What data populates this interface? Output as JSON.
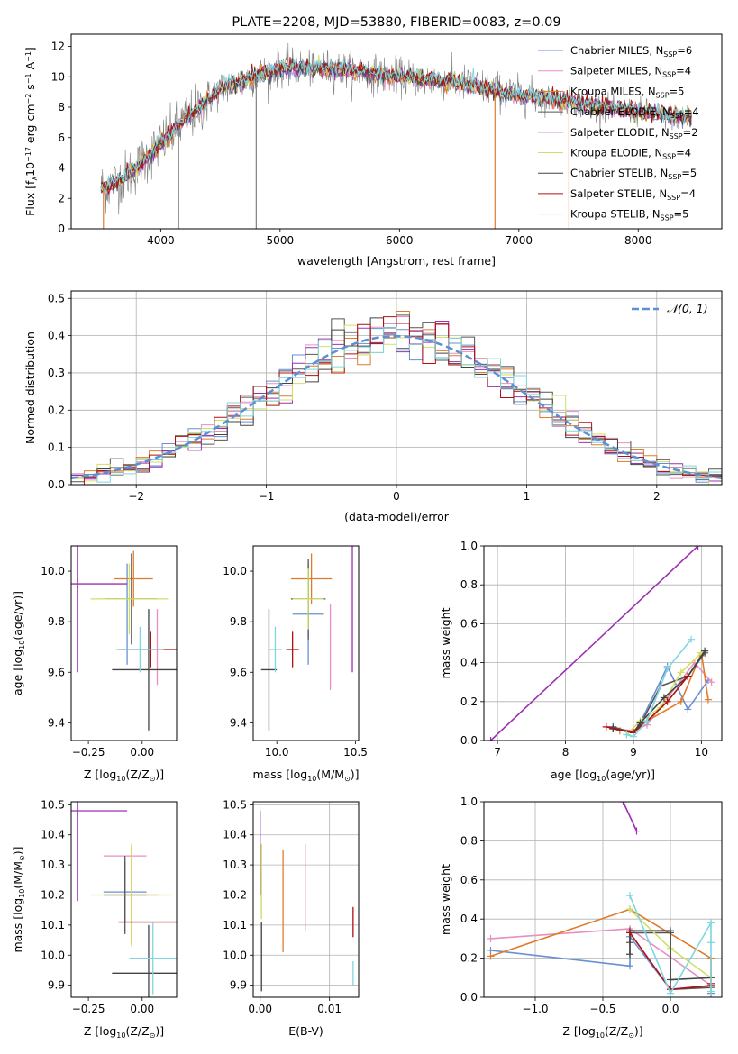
{
  "chart_data": [
    {
      "type": "line",
      "title": "PLATE=2208, MJD=53880, FIBERID=0083, z=0.09",
      "xlabel": "wavelength [Angstrom, rest frame]",
      "ylabel_main": "Flux [f",
      "ylabel_sub": "λ",
      "ylabel_rest": "10",
      "ylabel_exp1": "−17",
      "ylabel_units": " erg cm",
      "ylabel_exp2": "−2",
      "ylabel_s": " s",
      "ylabel_exp3": "−1",
      "ylabel_A": " A",
      "ylabel_exp4": "−1",
      "ylabel_close": "]",
      "xlim": [
        3250,
        8700
      ],
      "ylim": [
        0,
        12.8
      ],
      "xticks": [
        4000,
        5000,
        6000,
        7000,
        8000
      ],
      "yticks": [
        0,
        2,
        4,
        6,
        8,
        10,
        12
      ],
      "grid": false,
      "legend_position": "top-right",
      "data_color": "#808080",
      "series": [
        {
          "name": "Chabrier MILES, N",
          "sub": "SSP",
          "suffix": "=6",
          "color": "#6a8fd4"
        },
        {
          "name": "Salpeter MILES, N",
          "sub": "SSP",
          "suffix": "=4",
          "color": "#e88fc0"
        },
        {
          "name": "Kroupa MILES, N",
          "sub": "SSP",
          "suffix": "=5",
          "color": "#e07b2c"
        },
        {
          "name": "Chabrier ELODIE, N",
          "sub": "SSP",
          "suffix": "=4",
          "color": "#555555"
        },
        {
          "name": "Salpeter ELODIE, N",
          "sub": "SSP",
          "suffix": "=2",
          "color": "#9b30b0"
        },
        {
          "name": "Kroupa ELODIE, N",
          "sub": "SSP",
          "suffix": "=4",
          "color": "#cfe066"
        },
        {
          "name": "Chabrier STELIB, N",
          "sub": "SSP",
          "suffix": "=5",
          "color": "#444444"
        },
        {
          "name": "Salpeter STELIB, N",
          "sub": "SSP",
          "suffix": "=4",
          "color": "#b01010"
        },
        {
          "name": "Kroupa STELIB, N",
          "sub": "SSP",
          "suffix": "=5",
          "color": "#7fd6df"
        }
      ],
      "continuum": {
        "x": [
          3500,
          3600,
          3800,
          4000,
          4200,
          4500,
          5000,
          5500,
          6000,
          6500,
          7000,
          7400,
          7800,
          8200,
          8450
        ],
        "y": [
          2.7,
          2.9,
          4.0,
          5.6,
          7.1,
          9.2,
          10.6,
          10.5,
          10.0,
          9.6,
          8.8,
          8.4,
          7.9,
          7.5,
          7.3
        ]
      }
    },
    {
      "type": "histogram",
      "xlabel": "(data-model)/error",
      "ylabel": "Normed distribution",
      "xlim": [
        -2.5,
        2.5
      ],
      "ylim": [
        0,
        0.52
      ],
      "xticks": [
        -2,
        -1,
        0,
        1,
        2
      ],
      "xtick_labels": [
        "−2",
        "−1",
        "0",
        "1",
        "2"
      ],
      "yticks": [
        0.0,
        0.1,
        0.2,
        0.3,
        0.4,
        0.5
      ],
      "ytick_labels": [
        "0.0",
        "0.1",
        "0.2",
        "0.3",
        "0.4",
        "0.5"
      ],
      "grid": true,
      "bin_width": 0.1,
      "legend_label": "𝒩(0, 1)",
      "legend_position": "top-right",
      "normal_color": "#5b8fd6"
    },
    {
      "type": "scatter",
      "xlabel": "Z [log",
      "xlabel_sub": "10",
      "xlabel_rest": "(Z/Z",
      "xlabel_sub2": "⊙",
      "xlabel_close": ")]",
      "ylabel": "age  [log",
      "ylabel_sub": "10",
      "ylabel_rest": "(age/yr)]",
      "xlim": [
        -0.33,
        0.16
      ],
      "ylim": [
        9.33,
        10.1
      ],
      "xticks": [
        -0.25,
        0.0
      ],
      "xtick_labels": [
        "−0.25",
        "0.00"
      ],
      "yticks": [
        9.4,
        9.6,
        9.8,
        10.0
      ],
      "ytick_labels": [
        "9.4",
        "9.6",
        "9.8",
        "10.0"
      ],
      "points": [
        {
          "x": -0.07,
          "xerr": 0.0,
          "y": 9.83,
          "yerr": 0.2,
          "color": "#6a8fd4"
        },
        {
          "x": 0.07,
          "xerr": 0.0,
          "y": 9.7,
          "yerr": 0.15,
          "color": "#e88fc0"
        },
        {
          "x": -0.04,
          "xerr": 0.09,
          "y": 9.97,
          "yerr": 0.11,
          "color": "#e07b2c"
        },
        {
          "x": -0.05,
          "xerr": 0.12,
          "y": 9.89,
          "yerr": 0.18,
          "color": "#555555"
        },
        {
          "x": -0.3,
          "xerr": 0.23,
          "y": 9.95,
          "yerr": 0.35,
          "color": "#9b30b0"
        },
        {
          "x": -0.06,
          "xerr": 0.18,
          "y": 9.89,
          "yerr": 0.14,
          "color": "#cfe066"
        },
        {
          "x": 0.03,
          "xerr": 0.17,
          "y": 9.61,
          "yerr": 0.24,
          "color": "#444444"
        },
        {
          "x": 0.04,
          "xerr": 0.15,
          "y": 9.69,
          "yerr": 0.07,
          "color": "#b01010"
        },
        {
          "x": -0.01,
          "xerr": 0.11,
          "y": 9.69,
          "yerr": 0.09,
          "color": "#7fd6df"
        }
      ]
    },
    {
      "type": "scatter",
      "xlabel": "mass [log",
      "xlabel_sub": "10",
      "xlabel_rest": "(M/M",
      "xlabel_sub2": "⊙",
      "xlabel_close": ")]",
      "xlim": [
        9.85,
        10.52
      ],
      "ylim": [
        9.33,
        10.1
      ],
      "xticks": [
        10.0,
        10.5
      ],
      "xtick_labels": [
        "10.0",
        "10.5"
      ],
      "yticks": [
        9.4,
        9.6,
        9.8,
        10.0
      ],
      "ytick_labels": [
        "9.4",
        "9.6",
        "9.8",
        "10.0"
      ],
      "points": [
        {
          "x": 10.2,
          "xerr": 0.1,
          "y": 9.83,
          "yerr": 0.2,
          "color": "#6a8fd4"
        },
        {
          "x": 10.34,
          "xerr": 0.0,
          "y": 9.7,
          "yerr": 0.17,
          "color": "#e88fc0"
        },
        {
          "x": 10.22,
          "xerr": 0.13,
          "y": 9.97,
          "yerr": 0.1,
          "color": "#e07b2c"
        },
        {
          "x": 10.2,
          "xerr": 0.11,
          "y": 9.89,
          "yerr": 0.16,
          "color": "#555555"
        },
        {
          "x": 10.48,
          "xerr": 0.0,
          "y": 9.95,
          "yerr": 0.35,
          "color": "#9b30b0"
        },
        {
          "x": 10.2,
          "xerr": 0.1,
          "y": 9.89,
          "yerr": 0.12,
          "color": "#cfe066"
        },
        {
          "x": 9.95,
          "xerr": 0.05,
          "y": 9.61,
          "yerr": 0.24,
          "color": "#444444"
        },
        {
          "x": 10.1,
          "xerr": 0.04,
          "y": 9.69,
          "yerr": 0.07,
          "color": "#b01010"
        },
        {
          "x": 9.99,
          "xerr": 0.04,
          "y": 9.69,
          "yerr": 0.09,
          "color": "#7fd6df"
        }
      ]
    },
    {
      "type": "line",
      "xlabel": "age  [log",
      "xlabel_sub": "10",
      "xlabel_rest": "(age/yr)]",
      "ylabel": "mass weight",
      "xlim": [
        6.8,
        10.3
      ],
      "ylim": [
        0,
        1.0
      ],
      "xticks": [
        7,
        8,
        9,
        10
      ],
      "yticks": [
        0.0,
        0.2,
        0.4,
        0.6,
        0.8,
        1.0
      ],
      "ytick_labels": [
        "0.0",
        "0.2",
        "0.4",
        "0.6",
        "0.8",
        "1.0"
      ],
      "grid": true,
      "series": [
        {
          "color": "#6a8fd4",
          "x": [
            8.7,
            9.0,
            9.1,
            9.5,
            9.8,
            10.1
          ],
          "y": [
            0.06,
            0.04,
            0.09,
            0.38,
            0.16,
            0.31
          ]
        },
        {
          "color": "#e88fc0",
          "x": [
            8.7,
            9.0,
            9.2,
            9.5,
            9.9,
            10.15
          ],
          "y": [
            0.06,
            0.05,
            0.08,
            0.22,
            0.4,
            0.3
          ]
        },
        {
          "color": "#e07b2c",
          "x": [
            8.8,
            9.0,
            9.2,
            9.7,
            10.0,
            10.1
          ],
          "y": [
            0.05,
            0.05,
            0.1,
            0.2,
            0.45,
            0.21
          ]
        },
        {
          "color": "#555555",
          "x": [
            8.7,
            9.0,
            9.1,
            9.4,
            9.8,
            10.05
          ],
          "y": [
            0.07,
            0.04,
            0.08,
            0.28,
            0.33,
            0.45
          ]
        },
        {
          "color": "#9b30b0",
          "x": [
            6.9,
            9.95
          ],
          "y": [
            0.0,
            1.0
          ]
        },
        {
          "color": "#cfe066",
          "x": [
            8.9,
            9.1,
            9.4,
            9.7,
            10.0
          ],
          "y": [
            0.03,
            0.1,
            0.17,
            0.35,
            0.45
          ]
        },
        {
          "color": "#444444",
          "x": [
            8.7,
            9.0,
            9.1,
            9.45,
            9.8,
            10.05
          ],
          "y": [
            0.06,
            0.04,
            0.09,
            0.22,
            0.33,
            0.46
          ]
        },
        {
          "color": "#b01010",
          "x": [
            8.6,
            9.0,
            9.2,
            9.5,
            9.8
          ],
          "y": [
            0.07,
            0.04,
            0.1,
            0.2,
            0.33
          ]
        },
        {
          "color": "#7fd6df",
          "x": [
            8.9,
            9.0,
            9.2,
            9.5,
            9.85
          ],
          "y": [
            0.03,
            0.02,
            0.1,
            0.37,
            0.52
          ]
        }
      ]
    },
    {
      "type": "scatter",
      "xlabel": "Z [log",
      "xlabel_sub": "10",
      "xlabel_rest": "(Z/Z",
      "xlabel_sub2": "⊙",
      "xlabel_close": ")]",
      "ylabel": "mass [log",
      "ylabel_sub": "10",
      "ylabel_rest": "(M/M",
      "ylabel_sub2": "⊙",
      "ylabel_close": ")]",
      "xlim": [
        -0.33,
        0.16
      ],
      "ylim": [
        9.86,
        10.51
      ],
      "xticks": [
        -0.25,
        0.0
      ],
      "xtick_labels": [
        "−0.25",
        "0.00"
      ],
      "yticks": [
        9.9,
        10.0,
        10.1,
        10.2,
        10.3,
        10.4,
        10.5
      ],
      "ytick_labels": [
        "9.9",
        "10.0",
        "10.1",
        "10.2",
        "10.3",
        "10.4",
        "10.5"
      ],
      "points": [
        {
          "x": -0.08,
          "xerr": 0.1,
          "y": 10.21,
          "yerr": 0.1,
          "color": "#6a8fd4"
        },
        {
          "x": -0.08,
          "xerr": 0.1,
          "y": 10.33,
          "yerr": 0.0,
          "color": "#e88fc0"
        },
        {
          "x": -0.05,
          "xerr": 0.13,
          "y": 10.2,
          "yerr": 0.16,
          "color": "#e07b2c"
        },
        {
          "x": -0.08,
          "xerr": 0.1,
          "y": 10.2,
          "yerr": 0.13,
          "color": "#555555"
        },
        {
          "x": -0.3,
          "xerr": 0.23,
          "y": 10.48,
          "yerr": 0.3,
          "color": "#9b30b0"
        },
        {
          "x": -0.05,
          "xerr": 0.19,
          "y": 10.2,
          "yerr": 0.17,
          "color": "#cfe066"
        },
        {
          "x": 0.03,
          "xerr": 0.17,
          "y": 9.94,
          "yerr": 0.16,
          "color": "#444444"
        },
        {
          "x": 0.04,
          "xerr": 0.15,
          "y": 10.11,
          "yerr": 0.0,
          "color": "#b01010"
        },
        {
          "x": 0.05,
          "xerr": 0.11,
          "y": 9.99,
          "yerr": 0.12,
          "color": "#7fd6df"
        }
      ]
    },
    {
      "type": "scatter",
      "xlabel": "E(B-V)",
      "xlim": [
        -0.001,
        0.0142
      ],
      "ylim": [
        9.86,
        10.51
      ],
      "xticks": [
        0.0,
        0.01
      ],
      "xtick_labels": [
        "0.00",
        "0.01"
      ],
      "yticks": [
        9.9,
        10.0,
        10.1,
        10.2,
        10.3,
        10.4,
        10.5
      ],
      "ytick_labels": [
        "9.9",
        "10.0",
        "10.1",
        "10.2",
        "10.3",
        "10.4",
        "10.5"
      ],
      "grid": true,
      "segments": [
        {
          "x": 0.0,
          "y0": 10.2,
          "y1": 10.48,
          "color": "#9b30b0"
        },
        {
          "x": 0.0002,
          "y0": 10.12,
          "y1": 10.37,
          "color": "#cfe066"
        },
        {
          "x": 0.0002,
          "y0": 9.88,
          "y1": 10.11,
          "color": "#444444"
        },
        {
          "x": 0.0033,
          "y0": 10.01,
          "y1": 10.35,
          "color": "#e07b2c"
        },
        {
          "x": 0.0065,
          "y0": 10.08,
          "y1": 10.37,
          "color": "#e88fc0"
        },
        {
          "x": 0.0134,
          "y0": 10.06,
          "y1": 10.16,
          "color": "#b01010"
        },
        {
          "x": 0.0134,
          "y0": 9.9,
          "y1": 9.98,
          "color": "#7fd6df"
        }
      ]
    },
    {
      "type": "line",
      "xlabel": "Z [log",
      "xlabel_sub": "10",
      "xlabel_rest": "(Z/Z",
      "xlabel_sub2": "⊙",
      "xlabel_close": ")]",
      "ylabel": "mass weight",
      "xlim": [
        -1.38,
        0.38
      ],
      "ylim": [
        0,
        1.0
      ],
      "xticks": [
        -1.0,
        -0.5,
        0.0
      ],
      "xtick_labels": [
        "−1.0",
        "−0.5",
        "0.0"
      ],
      "yticks": [
        0.0,
        0.2,
        0.4,
        0.6,
        0.8,
        1.0
      ],
      "ytick_labels": [
        "0.0",
        "0.2",
        "0.4",
        "0.6",
        "0.8",
        "1.0"
      ],
      "grid": true,
      "series": [
        {
          "color": "#6a8fd4",
          "x": [
            -1.33,
            -0.3,
            -0.3,
            0.0,
            0.3,
            0.3
          ],
          "y": [
            0.24,
            0.16,
            0.31,
            0.04,
            0.06,
            0.02
          ]
        },
        {
          "color": "#e88fc0",
          "x": [
            -1.33,
            -0.3,
            0.3,
            0.3
          ],
          "y": [
            0.3,
            0.35,
            0.06,
            0.2
          ]
        },
        {
          "color": "#e07b2c",
          "x": [
            -1.33,
            -0.3,
            0.3,
            0.3
          ],
          "y": [
            0.21,
            0.45,
            0.2,
            0.1
          ]
        },
        {
          "color": "#555555",
          "x": [
            -0.3,
            -0.3,
            0.0,
            0.0,
            0.3
          ],
          "y": [
            0.28,
            0.33,
            0.33,
            0.04,
            0.05
          ]
        },
        {
          "color": "#9b30b0",
          "x": [
            -0.35,
            -0.25
          ],
          "y": [
            1.0,
            0.85
          ]
        },
        {
          "color": "#cfe066",
          "x": [
            -0.3,
            0.0,
            0.3,
            0.3
          ],
          "y": [
            0.45,
            0.25,
            0.1,
            0.03
          ]
        },
        {
          "color": "#444444",
          "x": [
            -0.3,
            -0.3,
            0.0,
            0.0,
            0.3
          ],
          "y": [
            0.22,
            0.34,
            0.34,
            0.09,
            0.1
          ]
        },
        {
          "color": "#b01010",
          "x": [
            -0.3,
            0.0,
            0.3,
            0.3
          ],
          "y": [
            0.33,
            0.04,
            0.06,
            0.07
          ]
        },
        {
          "color": "#7fd6df",
          "x": [
            -0.3,
            0.0,
            0.3,
            0.3,
            0.3
          ],
          "y": [
            0.52,
            0.02,
            0.38,
            0.28,
            0.03
          ]
        }
      ]
    }
  ]
}
